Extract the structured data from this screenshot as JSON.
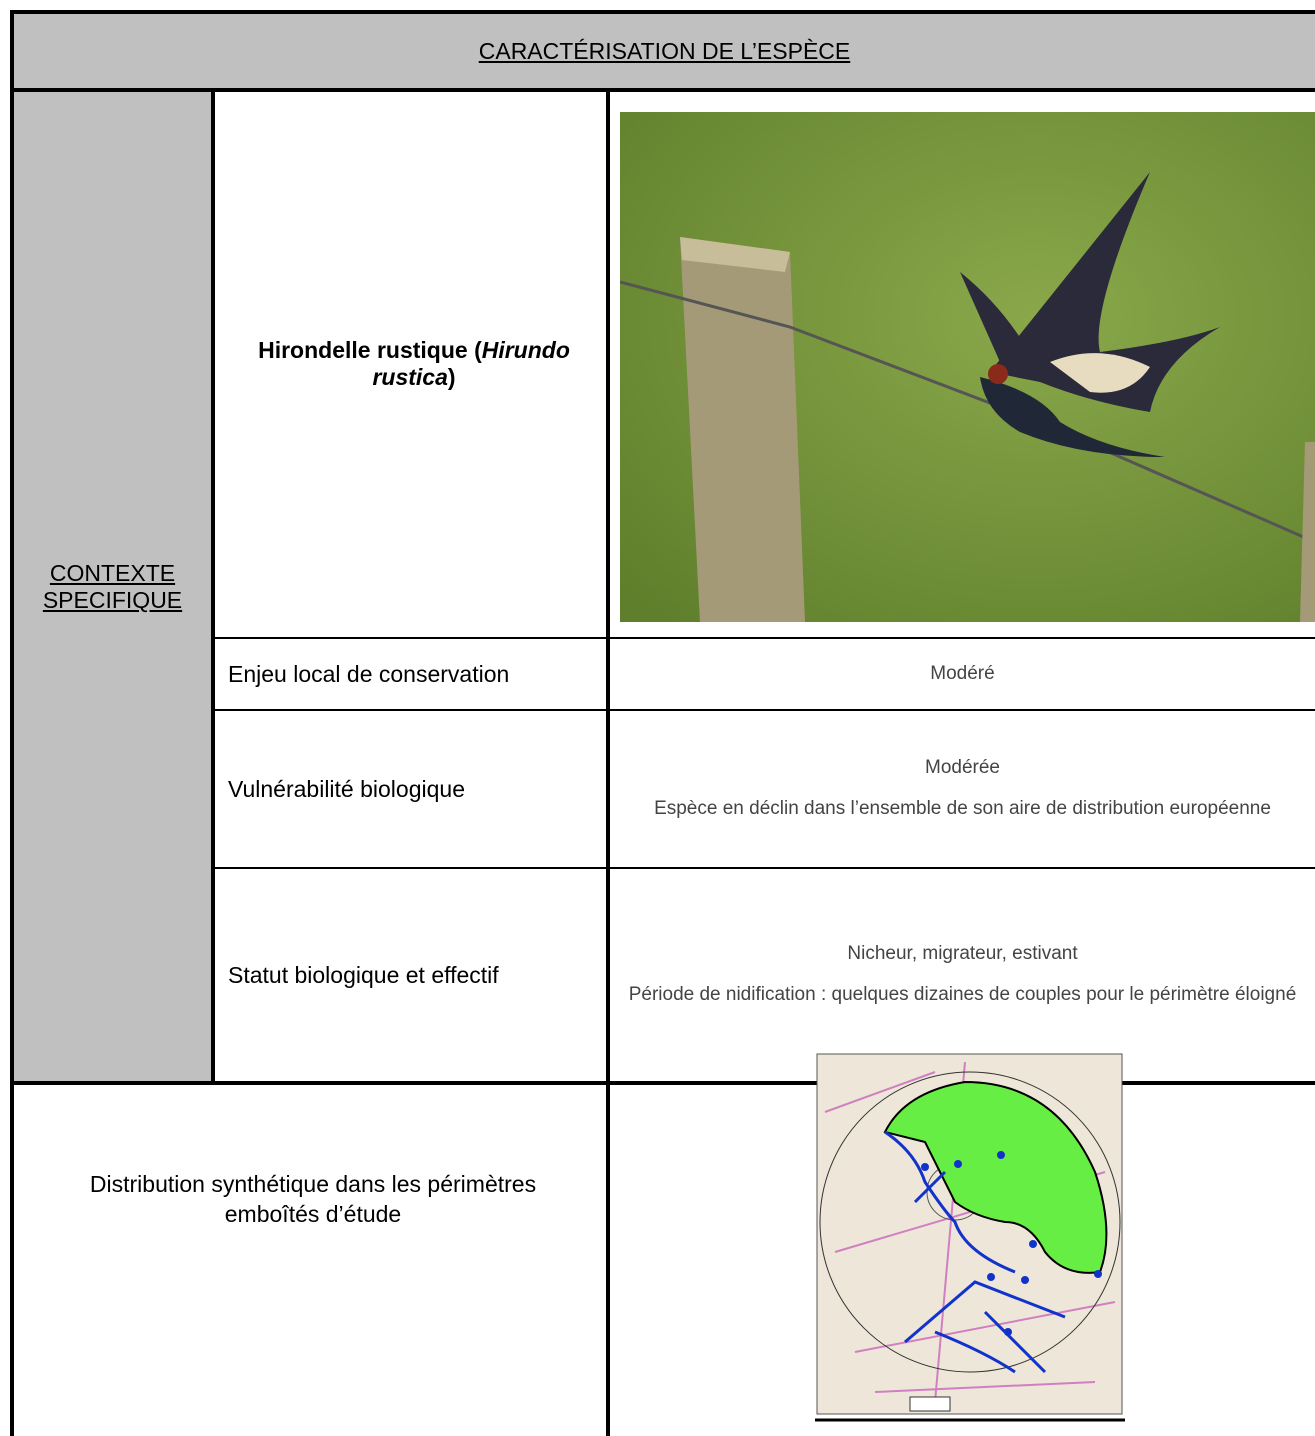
{
  "header": {
    "title": "CARACTÉRISATION DE L’ESPÈCE"
  },
  "context_label": "CONTEXTE SPECIFIQUE",
  "species": {
    "name_prefix": "Hirondelle rustique (",
    "latin": "Hirundo rustica",
    "name_suffix": ")"
  },
  "rows": [
    {
      "label": "Enjeu local de conservation",
      "values": [
        "Modéré"
      ]
    },
    {
      "label": "Vulnérabilité biologique",
      "values": [
        "Modérée",
        "Espèce en déclin dans l’ensemble de son aire de distribution européenne"
      ]
    },
    {
      "label": "Statut biologique et effectif",
      "values": [
        "Nicheur, migrateur, estivant",
        "Période de nidification : quelques dizaines de couples pour le périmètre éloigné"
      ]
    }
  ],
  "distribution": {
    "label": "Distribution synthétique dans les périmètres emboîtés d’étude"
  }
}
